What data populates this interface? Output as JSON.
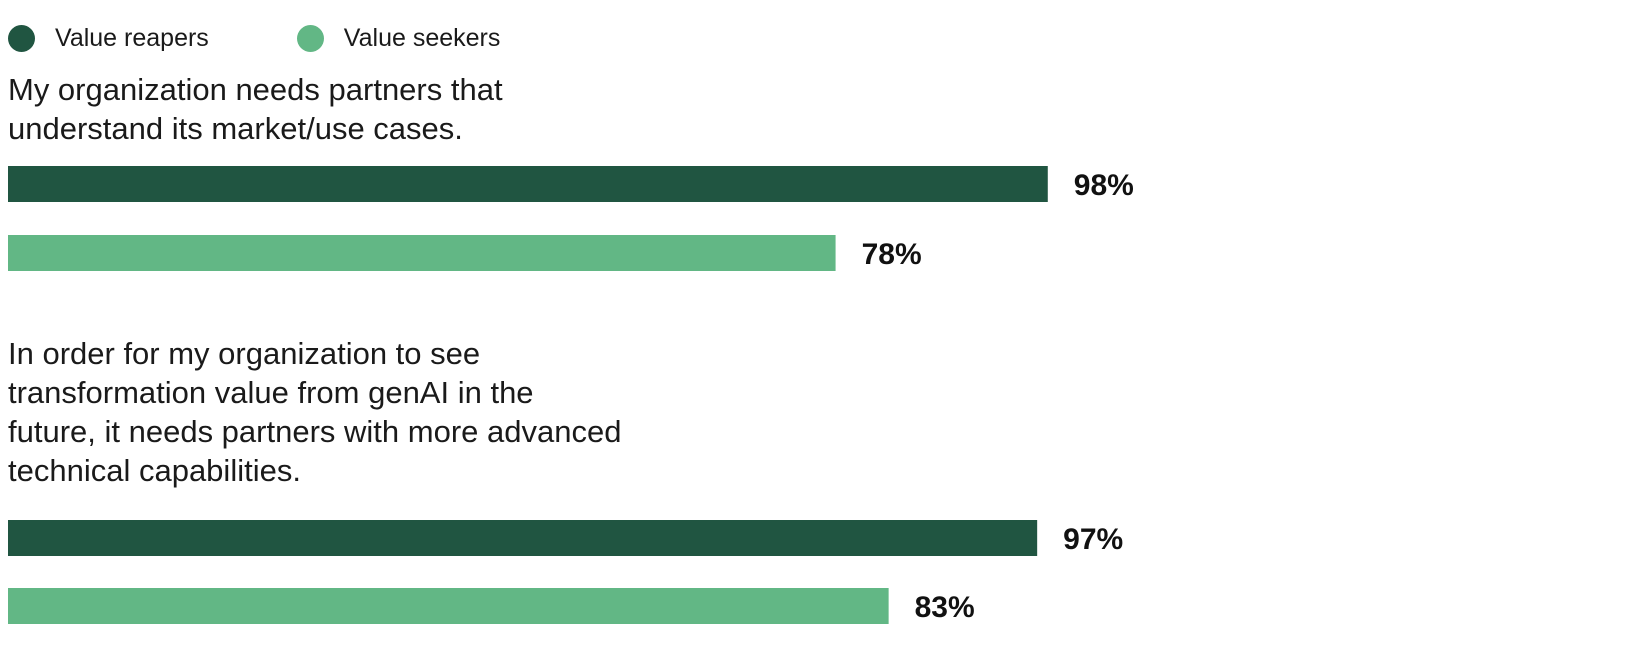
{
  "chart_data": {
    "type": "bar",
    "orientation": "horizontal",
    "categories": [
      "My organization needs partners that understand its market/use cases.",
      "In order for my organization to see transformation value from genAI in the future, it needs partners with more advanced technical capabilities."
    ],
    "series": [
      {
        "name": "Value reapers",
        "values": [
          98,
          97
        ],
        "color": "#205541"
      },
      {
        "name": "Value seekers",
        "values": [
          78,
          83
        ],
        "color": "#62b785"
      }
    ],
    "value_suffix": "%",
    "xlim": [
      0,
      100
    ],
    "legend_position": "top-left",
    "grid": false
  },
  "legend": {
    "items": [
      {
        "label": "Value reapers",
        "color": "#205541"
      },
      {
        "label": "Value seekers",
        "color": "#62b785"
      }
    ]
  },
  "questions": [
    {
      "lines": [
        "My organization needs partners that",
        "understand its market/use cases."
      ]
    },
    {
      "lines": [
        "In order for my organization to see",
        "transformation value from genAI in the",
        "future, it needs partners with more advanced",
        "technical capabilities."
      ]
    }
  ]
}
